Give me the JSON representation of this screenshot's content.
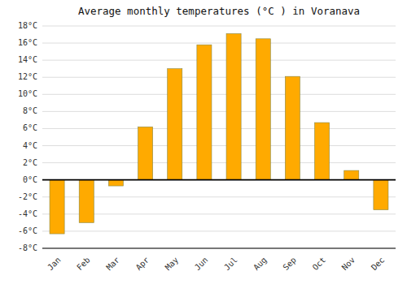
{
  "chart_data": {
    "type": "bar",
    "title": "Average monthly temperatures (°C ) in Voranava",
    "categories": [
      "Jan",
      "Feb",
      "Mar",
      "Apr",
      "May",
      "Jun",
      "Jul",
      "Aug",
      "Sep",
      "Oct",
      "Nov",
      "Dec"
    ],
    "values": [
      -6.3,
      -5.0,
      -0.7,
      6.2,
      13.0,
      15.8,
      17.1,
      16.5,
      12.1,
      6.7,
      1.1,
      -3.5
    ],
    "color": "#FFAA00",
    "ylim": [
      -8,
      18
    ],
    "yticks": [
      {
        "value": -8,
        "label": "-8°C"
      },
      {
        "value": -6,
        "label": "-6°C"
      },
      {
        "value": -4,
        "label": "-4°C"
      },
      {
        "value": -2,
        "label": "-2°C"
      },
      {
        "value": 0,
        "label": "0°C"
      },
      {
        "value": 2,
        "label": "2°C"
      },
      {
        "value": 4,
        "label": "4°C"
      },
      {
        "value": 6,
        "label": "6°C"
      },
      {
        "value": 8,
        "label": "8°C"
      },
      {
        "value": 10,
        "label": "10°C"
      },
      {
        "value": 12,
        "label": "12°C"
      },
      {
        "value": 14,
        "label": "14°C"
      },
      {
        "value": 16,
        "label": "16°C"
      },
      {
        "value": 18,
        "label": "18°C"
      }
    ],
    "grid": true
  }
}
